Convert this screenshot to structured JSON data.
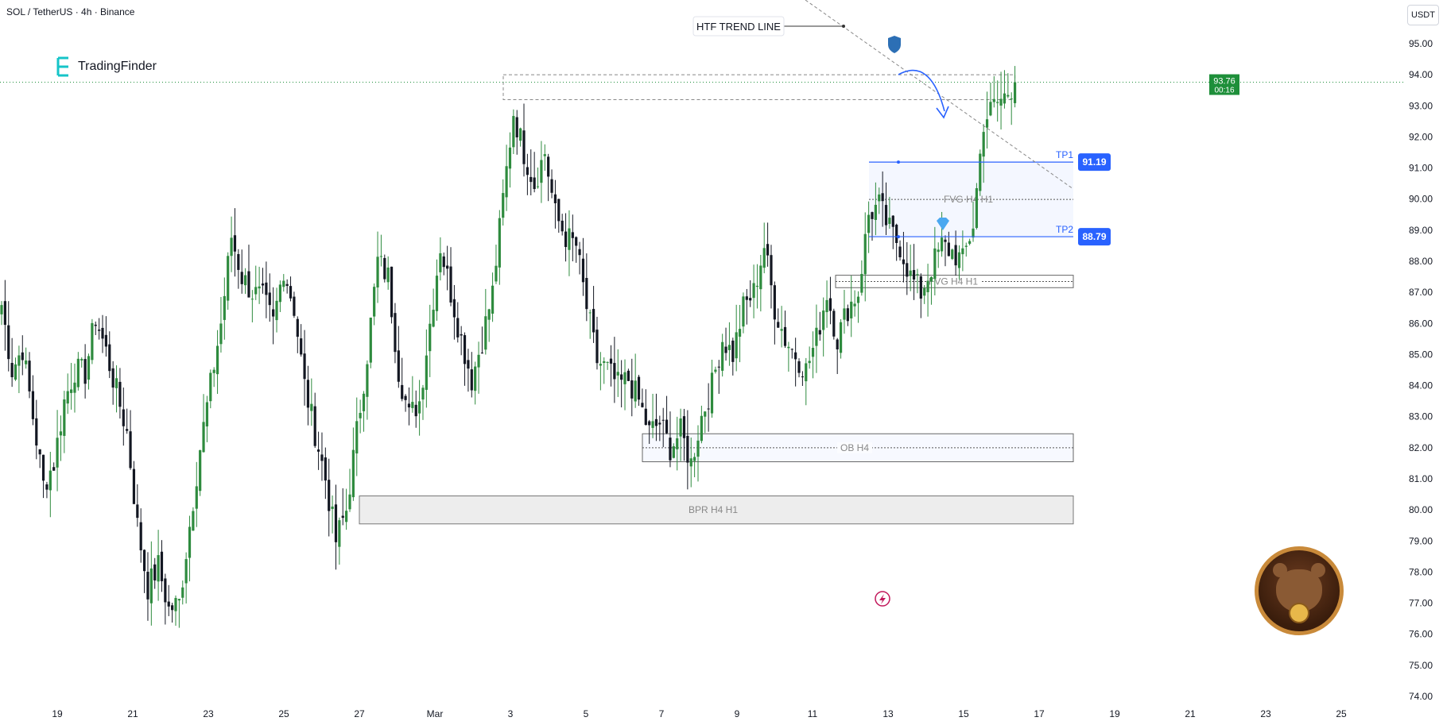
{
  "header": {
    "symbol_line": "SOL / TetherUS · 4h · Binance"
  },
  "logo": {
    "text": "TradingFinder"
  },
  "currency_button": "USDT",
  "colors": {
    "up": "#2e8b3e",
    "down": "#131722",
    "accent": "#2962ff",
    "price_tag": "#1e8f3a"
  },
  "price_tag": {
    "price": "93.76",
    "countdown": "00:16"
  },
  "annotations": {
    "trend_line_label": "HTF TREND LINE",
    "tp1_label": "TP1",
    "tp1_price": "91.19",
    "tp2_label": "TP2",
    "tp2_price": "88.79",
    "zones": [
      "FVG H4 H1",
      "FVG H4 H1",
      "OB H4",
      "BPR H4 H1"
    ]
  },
  "chart_data": {
    "type": "candlestick",
    "symbol": "SOL / TetherUS",
    "timeframe": "4h",
    "exchange": "Binance",
    "ylim": [
      73.5,
      95.9
    ],
    "y_ticks": [
      "95.00",
      "94.00",
      "93.00",
      "92.00",
      "91.00",
      "90.00",
      "89.00",
      "88.00",
      "87.00",
      "86.00",
      "85.00",
      "84.00",
      "83.00",
      "82.00",
      "81.00",
      "80.00",
      "79.00",
      "78.00",
      "77.00",
      "76.00",
      "75.00",
      "74.00"
    ],
    "x_ticks": [
      "19",
      "21",
      "23",
      "25",
      "27",
      "Mar",
      "3",
      "5",
      "7",
      "9",
      "11",
      "13",
      "15",
      "17",
      "19",
      "21",
      "23",
      "25"
    ],
    "close_path": [
      [
        0,
        86.6
      ],
      [
        3,
        84.5
      ],
      [
        6,
        85.2
      ],
      [
        9,
        83.0
      ],
      [
        12,
        80.8
      ],
      [
        15,
        81.5
      ],
      [
        18,
        83.5
      ],
      [
        21,
        84.5
      ],
      [
        24,
        84.4
      ],
      [
        27,
        86.2
      ],
      [
        30,
        85.1
      ],
      [
        33,
        83.8
      ],
      [
        36,
        82.5
      ],
      [
        39,
        79.5
      ],
      [
        42,
        77.5
      ],
      [
        45,
        78.2
      ],
      [
        48,
        76.8
      ],
      [
        51,
        77.0
      ],
      [
        54,
        79.5
      ],
      [
        57,
        82.0
      ],
      [
        60,
        84.0
      ],
      [
        63,
        86.0
      ],
      [
        66,
        88.8
      ],
      [
        69,
        87.5
      ],
      [
        72,
        87.0
      ],
      [
        75,
        86.8
      ],
      [
        78,
        86.0
      ],
      [
        81,
        87.8
      ],
      [
        84,
        86.5
      ],
      [
        87,
        84.0
      ],
      [
        90,
        82.5
      ],
      [
        93,
        81.0
      ],
      [
        96,
        79.0
      ],
      [
        99,
        80.0
      ],
      [
        102,
        82.5
      ],
      [
        105,
        85.0
      ],
      [
        108,
        88.0
      ],
      [
        111,
        87.5
      ],
      [
        114,
        84.5
      ],
      [
        117,
        83.0
      ],
      [
        120,
        83.5
      ],
      [
        123,
        86.0
      ],
      [
        126,
        88.5
      ],
      [
        129,
        87.0
      ],
      [
        132,
        85.5
      ],
      [
        135,
        84.2
      ],
      [
        138,
        85.5
      ],
      [
        141,
        87.0
      ],
      [
        144,
        90.0
      ],
      [
        147,
        92.8
      ],
      [
        150,
        91.5
      ],
      [
        153,
        90.5
      ],
      [
        156,
        91.5
      ],
      [
        159,
        89.5
      ],
      [
        162,
        88.8
      ],
      [
        165,
        88.5
      ],
      [
        168,
        86.5
      ],
      [
        171,
        84.8
      ],
      [
        174,
        84.5
      ],
      [
        177,
        84.0
      ],
      [
        180,
        84.2
      ],
      [
        183,
        83.5
      ],
      [
        186,
        82.5
      ],
      [
        189,
        82.8
      ],
      [
        192,
        82.0
      ],
      [
        195,
        82.5
      ],
      [
        198,
        81.5
      ],
      [
        201,
        83.0
      ],
      [
        204,
        84.0
      ],
      [
        207,
        85.5
      ],
      [
        210,
        85.0
      ],
      [
        213,
        86.5
      ],
      [
        216,
        87.0
      ],
      [
        219,
        88.5
      ],
      [
        222,
        86.5
      ],
      [
        225,
        85.5
      ],
      [
        228,
        85.0
      ],
      [
        231,
        84.5
      ],
      [
        234,
        85.5
      ],
      [
        237,
        87.0
      ],
      [
        240,
        85.5
      ],
      [
        243,
        86.5
      ],
      [
        246,
        87.0
      ],
      [
        249,
        89.5
      ],
      [
        252,
        89.8
      ],
      [
        255,
        89.0
      ],
      [
        258,
        88.5
      ],
      [
        261,
        87.5
      ],
      [
        264,
        87.0
      ],
      [
        267,
        87.8
      ],
      [
        270,
        88.5
      ],
      [
        273,
        88.3
      ],
      [
        276,
        88.0
      ],
      [
        279,
        89.2
      ],
      [
        282,
        92.5
      ],
      [
        285,
        93.0
      ],
      [
        288,
        93.3
      ],
      [
        291,
        93.76
      ]
    ],
    "levels": {
      "trend_line_from": [
        1013,
        0
      ],
      "trend_line_note": "dashed descending line",
      "top_box": [
        93.2,
        94.0
      ],
      "tp1": 91.19,
      "tp2": 88.79,
      "fvg_upper": [
        88.79,
        91.19
      ],
      "fvg_lower": [
        87.15,
        87.55
      ],
      "ob_h4": [
        81.55,
        82.45
      ],
      "bpr_h4_h1": [
        79.55,
        80.45
      ]
    },
    "last_price": 93.76,
    "grid": false
  }
}
